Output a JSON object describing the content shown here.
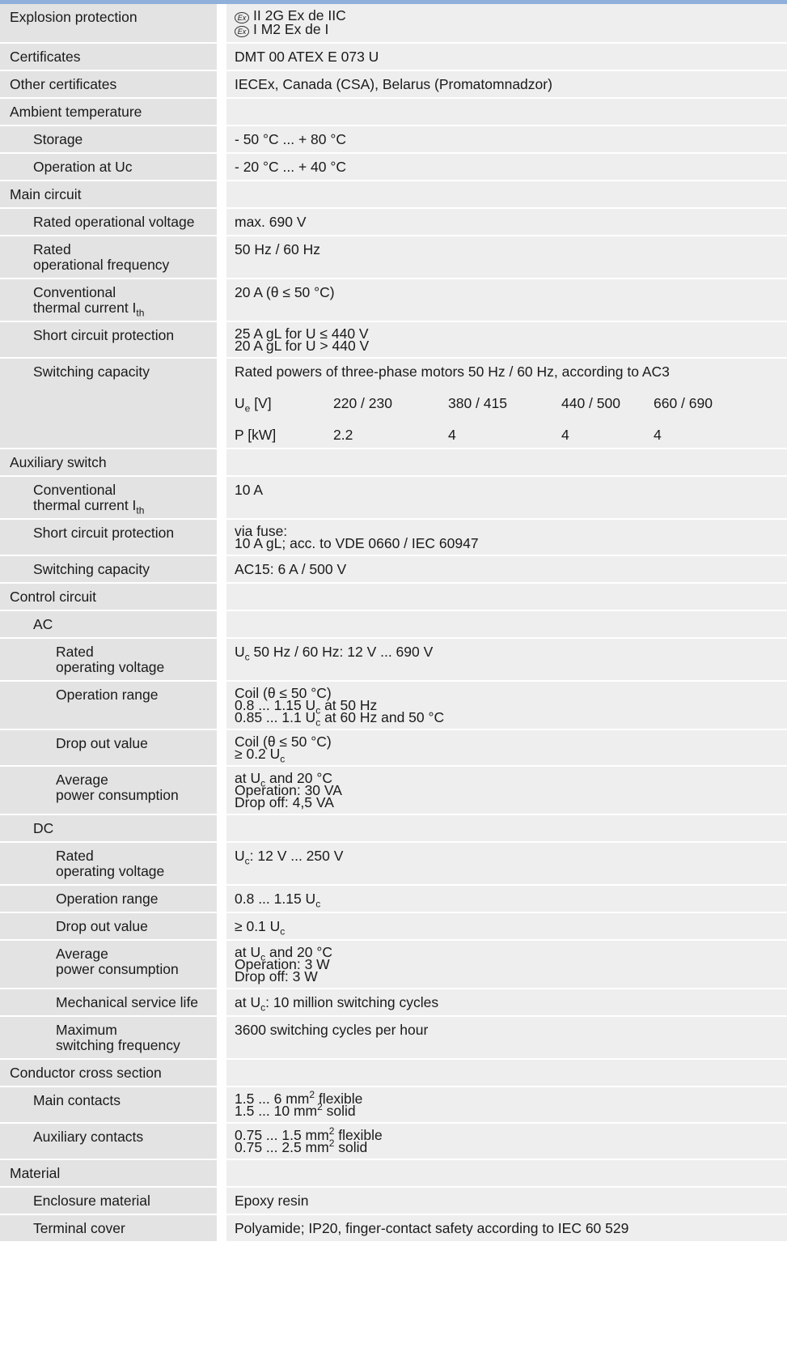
{
  "rows": [
    {
      "label": "Explosion protection",
      "level": 0,
      "stack": true,
      "lines": [
        "II 2G Ex de IIC",
        "I M2 Ex de I"
      ],
      "icon": "ex-mark-icon"
    },
    {
      "label": "Certificates",
      "level": 0,
      "lines": [
        "DMT 00 ATEX E 073 U"
      ]
    },
    {
      "label": "Other certificates",
      "level": 0,
      "lines": [
        "IECEx, Canada (CSA), Belarus (Promatomnadzor)"
      ]
    },
    {
      "label": "Ambient temperature",
      "level": 0,
      "lines": []
    },
    {
      "label": "Storage",
      "level": 1,
      "lines": [
        "- 50 °C ... + 80 °C"
      ]
    },
    {
      "label": "Operation at Uc",
      "level": 1,
      "lines": [
        "- 20 °C ... + 40 °C"
      ]
    },
    {
      "label": "Main circuit",
      "level": 0,
      "lines": []
    },
    {
      "label": "Rated operational voltage",
      "level": 1,
      "lines": [
        "max. 690 V"
      ]
    },
    {
      "label": "Rated\noperational frequency",
      "level": 1,
      "lines": [
        "50 Hz / 60 Hz"
      ]
    },
    {
      "label": "Conventional\nthermal current I<sub>th</sub>",
      "level": 1,
      "lines": [
        "20 A (θ ≤ 50 °C)"
      ]
    },
    {
      "label": "Short circuit protection",
      "level": 1,
      "stack": true,
      "lines": [
        "25 A gL for U ≤ 440 V",
        "20 A gL for U > 440 V"
      ]
    },
    {
      "label": "Switching capacity",
      "level": 1,
      "lines": [
        "Rated powers of three-phase motors 50 Hz / 60 Hz, according to AC3"
      ],
      "table": {
        "header": [
          "U<sub>e</sub> [V]",
          "220 / 230",
          "380 / 415",
          "440 / 500",
          "660 / 690"
        ],
        "values": [
          "P [kW]",
          "2.2",
          "4",
          "4",
          "4"
        ]
      }
    },
    {
      "label": "Auxiliary switch",
      "level": 0,
      "lines": []
    },
    {
      "label": "Conventional\nthermal current I<sub>th</sub>",
      "level": 1,
      "lines": [
        "10 A"
      ]
    },
    {
      "label": "Short circuit protection",
      "level": 1,
      "stack": true,
      "lines": [
        "via fuse:",
        "10 A gL; acc. to VDE 0660 / IEC 60947"
      ]
    },
    {
      "label": "Switching capacity",
      "level": 1,
      "lines": [
        "AC15: 6 A / 500 V"
      ]
    },
    {
      "label": "Control circuit",
      "level": 0,
      "lines": []
    },
    {
      "label": "AC",
      "level": 1,
      "lines": []
    },
    {
      "label": "Rated\noperating voltage",
      "level": 2,
      "lines": [
        "U<sub>c</sub> 50 Hz / 60 Hz: 12 V ... 690 V"
      ]
    },
    {
      "label": "Operation range",
      "level": 2,
      "stack": true,
      "lines": [
        "Coil (θ ≤ 50 °C)",
        "0.8 ... 1.15 U<sub>c</sub> at 50 Hz",
        "0.85 ... 1.1 U<sub>c</sub> at 60 Hz and 50 °C"
      ]
    },
    {
      "label": "Drop out value",
      "level": 2,
      "stack": true,
      "lines": [
        "Coil (θ ≤ 50 °C)",
        "≥ 0.2 U<sub>c</sub>"
      ]
    },
    {
      "label": "Average\npower consumption",
      "level": 2,
      "stack": true,
      "lines": [
        "at U<sub>c</sub> and 20 °C",
        "Operation:  30 VA",
        "Drop off:  4,5 VA"
      ]
    },
    {
      "label": "DC",
      "level": 1,
      "lines": []
    },
    {
      "label": "Rated\noperating voltage",
      "level": 2,
      "lines": [
        "U<sub>c</sub>: 12 V ... 250 V"
      ]
    },
    {
      "label": "Operation range",
      "level": 2,
      "lines": [
        "0.8 ... 1.15 U<sub>c</sub>"
      ]
    },
    {
      "label": "Drop out value",
      "level": 2,
      "lines": [
        "≥ 0.1 U<sub>c</sub>"
      ]
    },
    {
      "label": "Average\npower consumption",
      "level": 2,
      "stack": true,
      "lines": [
        "at U<sub>c</sub> and 20 °C",
        "Operation: 3 W",
        "Drop off: 3 W"
      ]
    },
    {
      "label": "Mechanical service life",
      "level": 2,
      "lines": [
        "at U<sub>c</sub>: 10 million switching cycles"
      ]
    },
    {
      "label": "Maximum\nswitching frequency",
      "level": 2,
      "lines": [
        "3600 switching cycles per hour"
      ]
    },
    {
      "label": "Conductor cross section",
      "level": 0,
      "lines": []
    },
    {
      "label": "Main contacts",
      "level": 1,
      "stack": true,
      "lines": [
        "1.5 ... 6 mm<sup>2</sup> flexible",
        "1.5 ... 10 mm<sup>2</sup> solid"
      ]
    },
    {
      "label": "Auxiliary contacts",
      "level": 1,
      "stack": true,
      "lines": [
        "0.75 ... 1.5 mm<sup>2</sup> flexible",
        "0.75 ... 2.5 mm<sup>2</sup> solid"
      ]
    },
    {
      "label": "Material",
      "level": 0,
      "lines": []
    },
    {
      "label": "Enclosure material",
      "level": 1,
      "lines": [
        "Epoxy resin"
      ]
    },
    {
      "label": "Terminal cover",
      "level": 1,
      "lines": [
        "Polyamide; IP20, finger-contact safety according to IEC 60 529"
      ]
    }
  ]
}
